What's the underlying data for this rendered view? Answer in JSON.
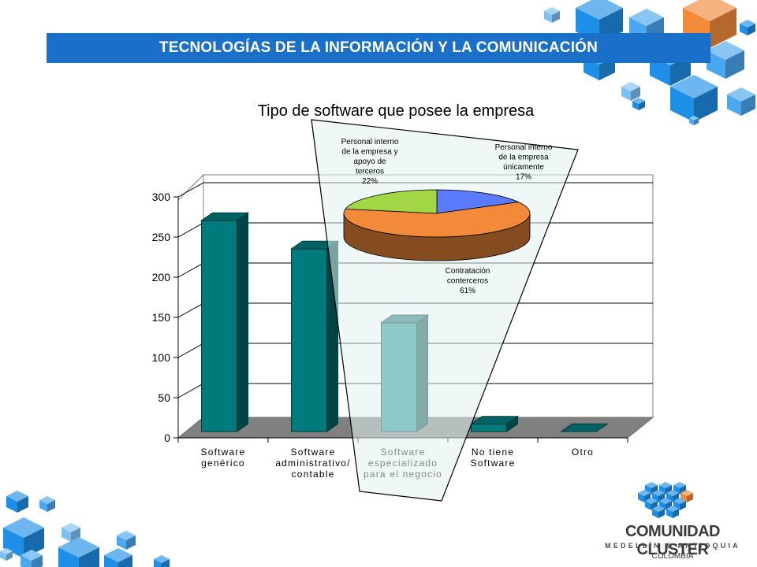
{
  "header": {
    "title": "TECNOLOGÍAS DE LA INFORMACIÓN Y LA COMUNICACIÓN"
  },
  "colors": {
    "header_blue": "#1a6fc9",
    "bar_teal": "#007b7b",
    "bar_teal_light": "#2a9898",
    "floor_gray": "#808080",
    "pie_blue": "#5b7bff",
    "pie_orange": "#f28a3a",
    "pie_green": "#a3d644",
    "cube_blue": "#1e8fe6"
  },
  "chart_data": [
    {
      "type": "bar",
      "title": "Tipo de software que posee la empresa",
      "categories": [
        [
          "Software",
          "genérico"
        ],
        [
          "Software",
          "administrativo/",
          "contable"
        ],
        [
          "Software",
          "especializado",
          "para el negocio"
        ],
        [
          "No tiene",
          "Software"
        ],
        [
          "Otro"
        ]
      ],
      "values": [
        283,
        245,
        146,
        10,
        0
      ],
      "ylim": [
        0,
        300
      ],
      "yticks": [
        0,
        50,
        100,
        150,
        200,
        250,
        300
      ],
      "grid": true,
      "three_d": true
    },
    {
      "type": "pie",
      "slices": [
        {
          "label": [
            "Personal interno",
            "de la empresa",
            "únicamente",
            "17%"
          ],
          "value": 17,
          "color": "#5b7bff"
        },
        {
          "label": [
            "Contratación",
            "conterceros",
            "61%"
          ],
          "value": 61,
          "color": "#f28a3a"
        },
        {
          "label": [
            "Personal interno",
            "de la empresa y",
            "apoyo de",
            "terceros",
            "22%"
          ],
          "value": 22,
          "color": "#a3d644"
        }
      ],
      "three_d": true
    }
  ],
  "logo": {
    "line1": "COMUNIDAD CLUSTER",
    "line2": "MEDELLÍN & ANTIOQUIA",
    "line3": "COLOMBIA"
  }
}
